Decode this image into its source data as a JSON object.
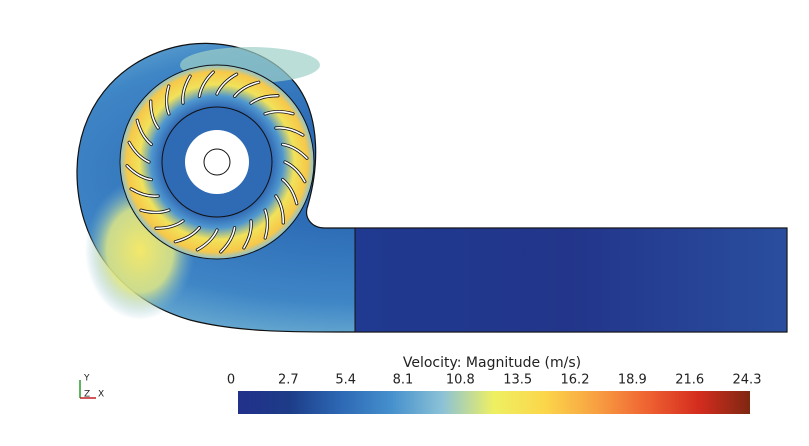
{
  "colorbar": {
    "title": "Velocity: Magnitude (m/s)",
    "ticks": [
      0,
      2.7,
      5.4,
      8.1,
      10.8,
      13.5,
      16.2,
      18.9,
      21.6,
      24.3
    ],
    "colors": [
      "#22308a",
      "#1d3c88",
      "#2d68b4",
      "#4590cd",
      "#8cc2d6",
      "#eef062",
      "#fbd64a",
      "#f8a042",
      "#ef6232",
      "#d42c1e",
      "#7e2812"
    ]
  },
  "triad": {
    "y": "Y",
    "z": "Z",
    "x": "X"
  }
}
